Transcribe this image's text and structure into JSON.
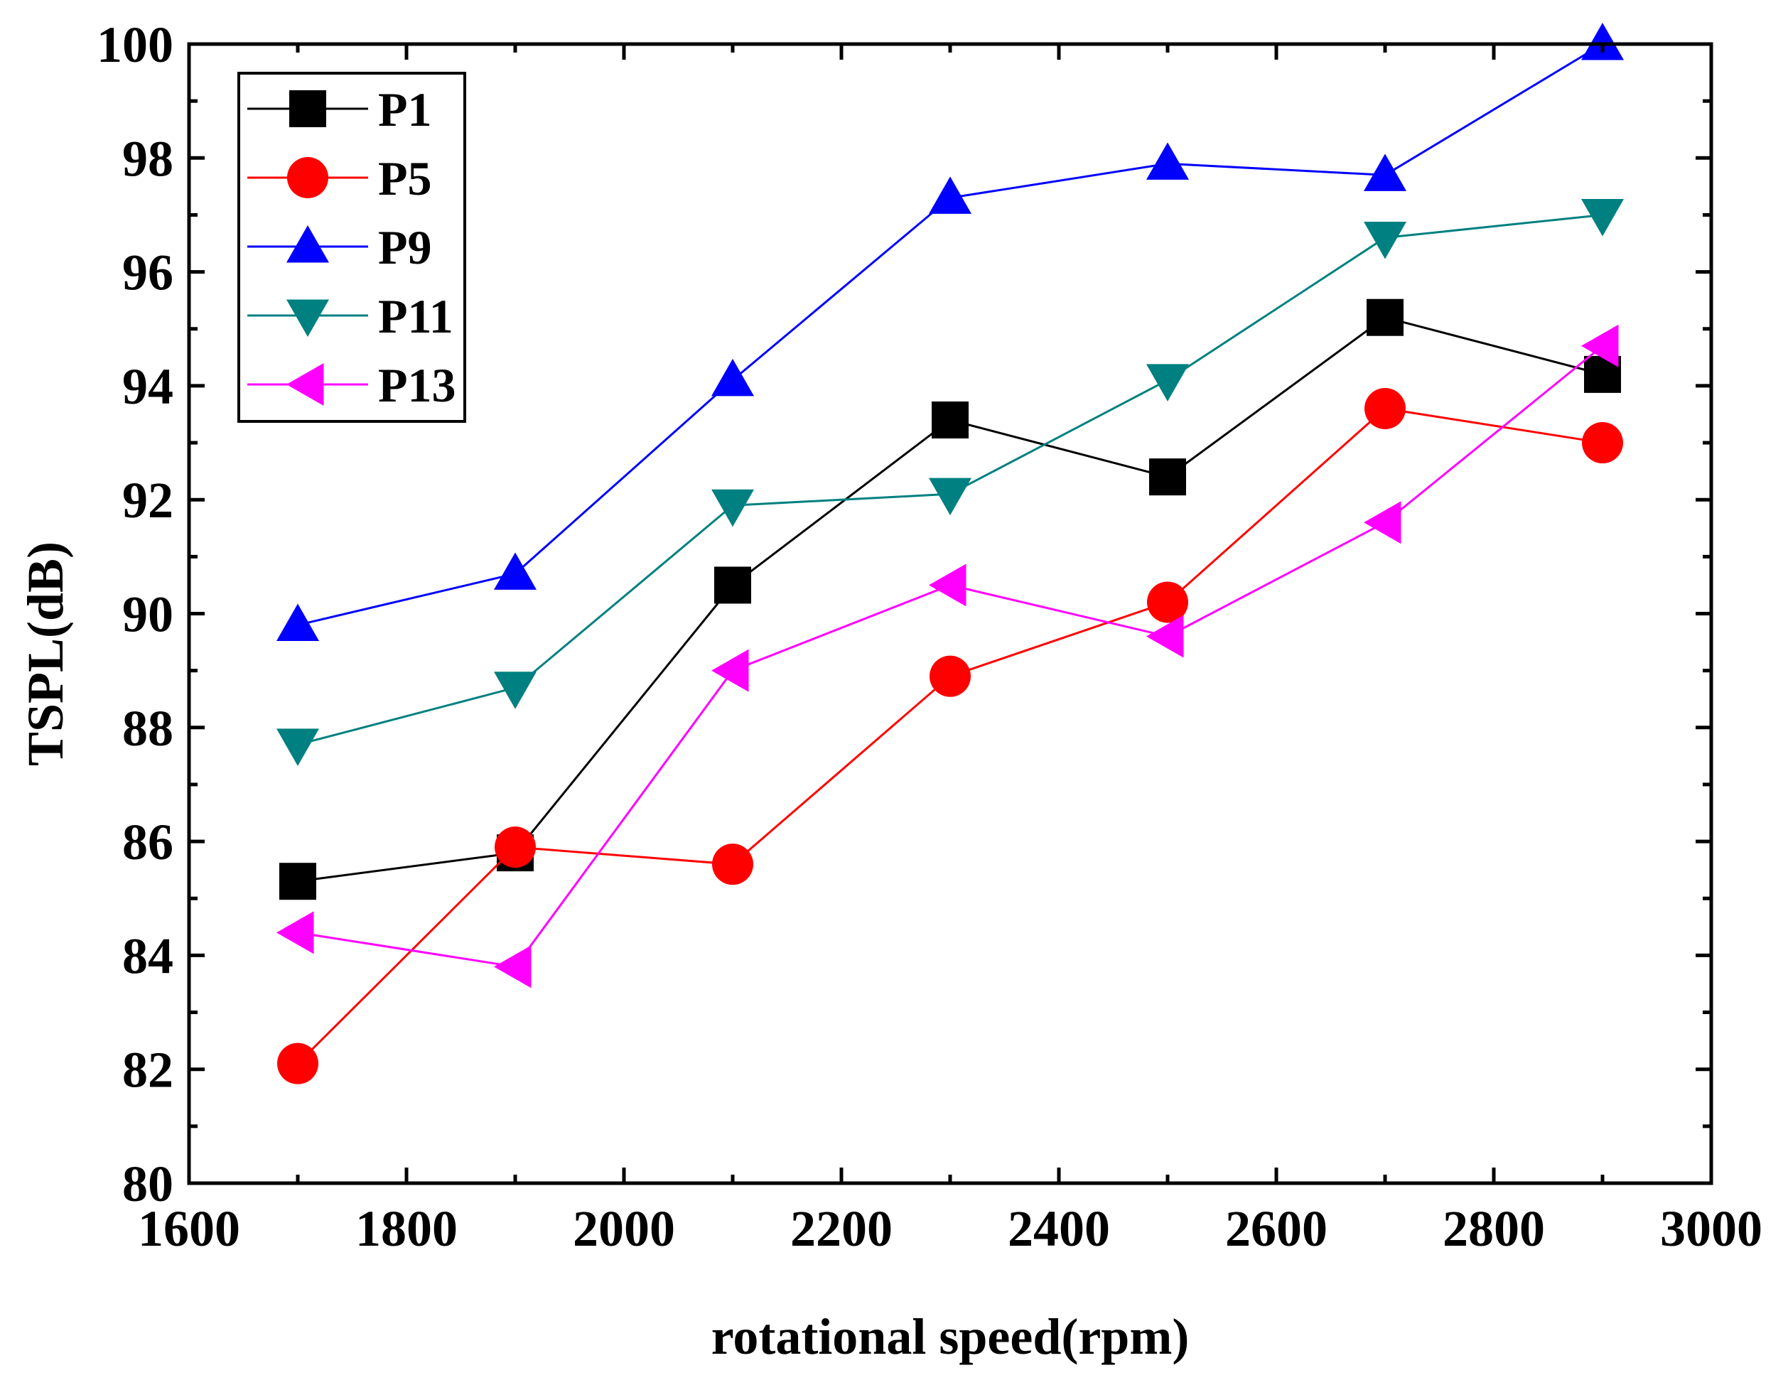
{
  "chart_data": {
    "type": "line",
    "title": "",
    "xlabel": "rotational speed(rpm)",
    "ylabel": "TSPL(dB)",
    "xlim": [
      1600,
      3000
    ],
    "ylim": [
      80,
      100
    ],
    "x_ticks": [
      1600,
      1800,
      2000,
      2200,
      2400,
      2600,
      2800,
      3000
    ],
    "y_ticks": [
      80,
      82,
      84,
      86,
      88,
      90,
      92,
      94,
      96,
      98,
      100
    ],
    "x_tick_labels": [
      "1600",
      "1800",
      "2000",
      "2200",
      "2400",
      "2600",
      "2800",
      "3000"
    ],
    "y_tick_labels": [
      "80",
      "82",
      "84",
      "86",
      "88",
      "90",
      "92",
      "94",
      "96",
      "98",
      "100"
    ],
    "grid": false,
    "legend_position": "top-left",
    "x": [
      1700,
      1900,
      2100,
      2300,
      2500,
      2700,
      2900
    ],
    "series": [
      {
        "name": "P1",
        "color": "#000000",
        "marker": "square",
        "values": [
          85.3,
          85.8,
          90.5,
          93.4,
          92.4,
          95.2,
          94.2
        ]
      },
      {
        "name": "P5",
        "color": "#ff0000",
        "marker": "circle",
        "values": [
          82.1,
          85.9,
          85.6,
          88.9,
          90.2,
          93.6,
          93.0
        ]
      },
      {
        "name": "P9",
        "color": "#0000ff",
        "marker": "triangle-up",
        "values": [
          89.8,
          90.7,
          94.1,
          97.3,
          97.9,
          97.7,
          100.0
        ]
      },
      {
        "name": "P11",
        "color": "#008080",
        "marker": "triangle-down",
        "values": [
          87.7,
          88.7,
          91.9,
          92.1,
          94.1,
          96.6,
          97.0
        ]
      },
      {
        "name": "P13",
        "color": "#ff00ff",
        "marker": "triangle-left",
        "values": [
          84.4,
          83.8,
          89.0,
          90.5,
          89.6,
          91.6,
          94.7
        ]
      }
    ]
  }
}
